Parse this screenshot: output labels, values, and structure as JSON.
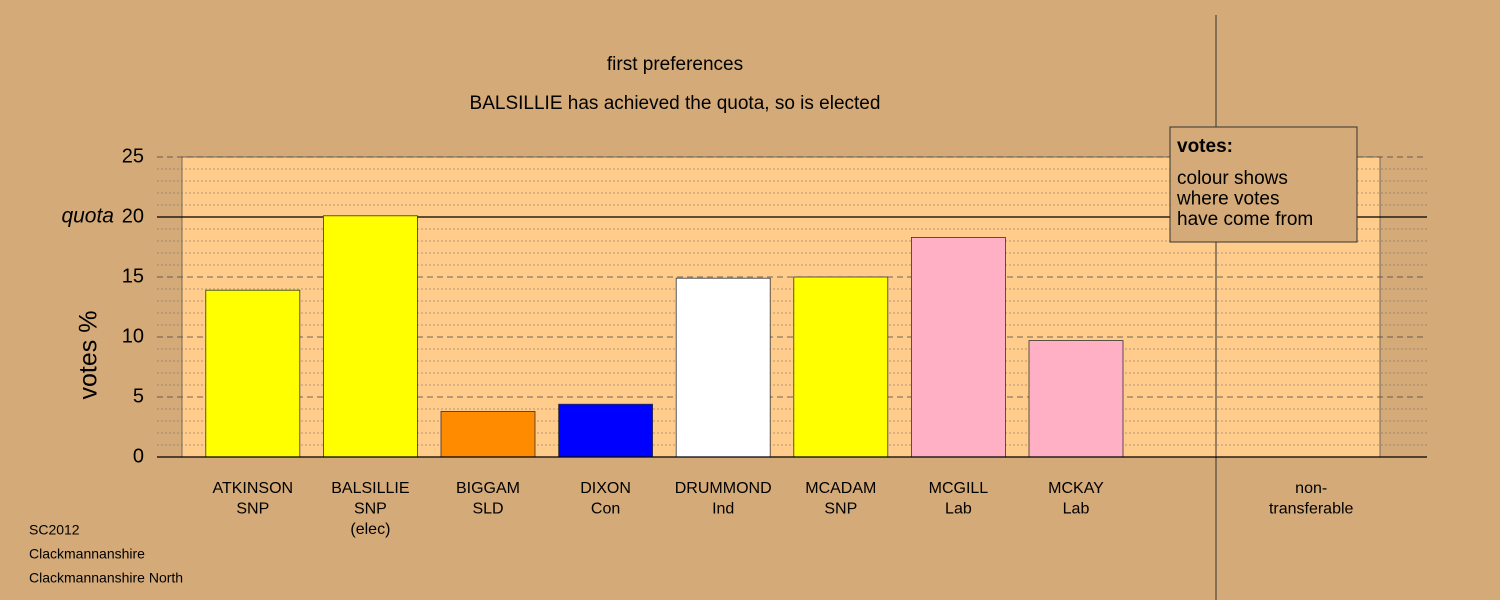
{
  "chart_data": {
    "type": "bar",
    "title": "first preferences",
    "subtitle": "BALSILLIE has achieved the quota, so is elected",
    "y_label": "votes %",
    "categories": [
      [
        "ATKINSON",
        "SNP"
      ],
      [
        "BALSILLIE",
        "SNP",
        "(elec)"
      ],
      [
        "BIGGAM",
        "SLD"
      ],
      [
        "DIXON",
        "Con"
      ],
      [
        "DRUMMOND",
        "Ind"
      ],
      [
        "MCADAM",
        "SNP"
      ],
      [
        "MCGILL",
        "Lab"
      ],
      [
        "MCKAY",
        "Lab"
      ],
      null,
      [
        "non-",
        "transferable"
      ]
    ],
    "values": [
      13.9,
      20.1,
      3.8,
      4.4,
      14.9,
      15.0,
      18.3,
      9.7,
      null,
      null
    ],
    "colors": [
      "#ffff00",
      "#ffff00",
      "#ff8c00",
      "#0000ff",
      "#ffffff",
      "#ffff00",
      "#ffb0c4",
      "#ffb0c4",
      null,
      null
    ],
    "ylim": [
      0,
      25
    ],
    "yticks": [
      0,
      5,
      10,
      15,
      20,
      25
    ],
    "minor_yticks": [
      1,
      2,
      3,
      4,
      6,
      7,
      8,
      9,
      11,
      12,
      13,
      14,
      16,
      17,
      18,
      19,
      21,
      22,
      23,
      24
    ],
    "quota": 20,
    "quota_label": "quota",
    "legend": {
      "title": "votes:",
      "lines": [
        "colour shows",
        "where votes",
        "have come from"
      ]
    },
    "footer": [
      "SC2012",
      "Clackmannanshire",
      "Clackmannanshire North"
    ]
  }
}
